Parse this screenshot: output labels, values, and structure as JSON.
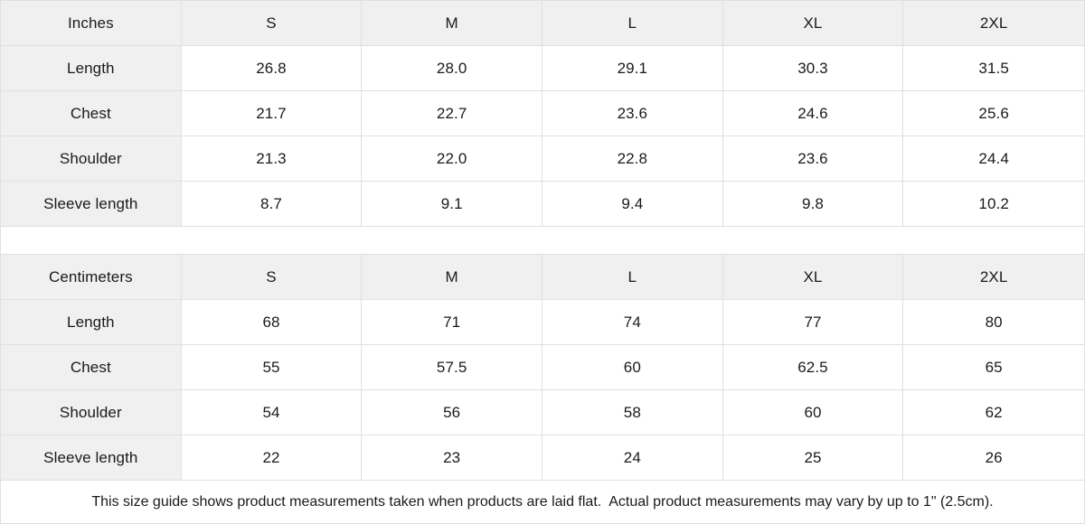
{
  "colors": {
    "header_bg": "#f0f0f0",
    "cell_bg": "#ffffff",
    "border": "#e0e0e0",
    "text": "#1a1a1a"
  },
  "tables": [
    {
      "unit_label": "Inches",
      "sizes": [
        "S",
        "M",
        "L",
        "XL",
        "2XL"
      ],
      "rows": [
        {
          "label": "Length",
          "values": [
            "26.8",
            "28.0",
            "29.1",
            "30.3",
            "31.5"
          ]
        },
        {
          "label": "Chest",
          "values": [
            "21.7",
            "22.7",
            "23.6",
            "24.6",
            "25.6"
          ]
        },
        {
          "label": "Shoulder",
          "values": [
            "21.3",
            "22.0",
            "22.8",
            "23.6",
            "24.4"
          ]
        },
        {
          "label": "Sleeve length",
          "values": [
            "8.7",
            "9.1",
            "9.4",
            "9.8",
            "10.2"
          ]
        }
      ]
    },
    {
      "unit_label": "Centimeters",
      "sizes": [
        "S",
        "M",
        "L",
        "XL",
        "2XL"
      ],
      "rows": [
        {
          "label": "Length",
          "values": [
            "68",
            "71",
            "74",
            "77",
            "80"
          ]
        },
        {
          "label": "Chest",
          "values": [
            "55",
            "57.5",
            "60",
            "62.5",
            "65"
          ]
        },
        {
          "label": "Shoulder",
          "values": [
            "54",
            "56",
            "58",
            "60",
            "62"
          ]
        },
        {
          "label": "Sleeve length",
          "values": [
            "22",
            "23",
            "24",
            "25",
            "26"
          ]
        }
      ]
    }
  ],
  "footer": {
    "note": "This size guide shows product measurements taken when products are laid flat.  Actual product measurements may vary by up to 1\" (2.5cm)."
  }
}
